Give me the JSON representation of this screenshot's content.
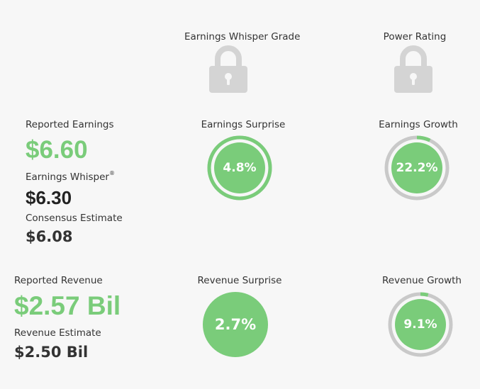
{
  "columns": {
    "grade_label": "Earnings Whisper Grade",
    "power_label": "Power Rating",
    "grade_icon": "lock-icon",
    "power_icon": "lock-icon"
  },
  "earnings": {
    "reported_label": "Reported Earnings",
    "reported_value": "$6.60",
    "whisper_label": "Earnings Whisper",
    "whisper_mark": "®",
    "whisper_value": "$6.30",
    "consensus_label": "Consensus Estimate",
    "consensus_value": "$6.08",
    "surprise_label": "Earnings Surprise",
    "surprise_value": "4.8%",
    "surprise_fraction": 1.0,
    "growth_label": "Earnings Growth",
    "growth_value": "22.2%",
    "growth_fraction": 0.07
  },
  "revenue": {
    "reported_label": "Reported Revenue",
    "reported_value": "$2.57 Bil",
    "estimate_label": "Revenue Estimate",
    "estimate_value": "$2.50 Bil",
    "surprise_label": "Revenue Surprise",
    "surprise_value": "2.7%",
    "growth_label": "Revenue Growth",
    "growth_value": "9.1%",
    "growth_fraction": 0.04
  },
  "colors": {
    "green": "#7acc7a",
    "ring_track": "#c9c9c9",
    "lock": "#d4d4d4"
  }
}
